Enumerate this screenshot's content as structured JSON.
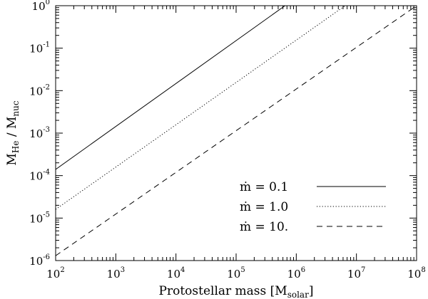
{
  "chart_data": {
    "type": "line",
    "x_scale": "log",
    "y_scale": "log",
    "xlim": [
      100,
      100000000
    ],
    "ylim": [
      1e-06,
      1
    ],
    "x_ticks": [
      {
        "base": "10",
        "exp": "2",
        "value": 100
      },
      {
        "base": "10",
        "exp": "3",
        "value": 1000
      },
      {
        "base": "10",
        "exp": "4",
        "value": 10000
      },
      {
        "base": "10",
        "exp": "5",
        "value": 100000
      },
      {
        "base": "10",
        "exp": "6",
        "value": 1000000
      },
      {
        "base": "10",
        "exp": "7",
        "value": 10000000
      },
      {
        "base": "10",
        "exp": "8",
        "value": 100000000
      }
    ],
    "y_ticks": [
      {
        "base": "10",
        "exp": "-6",
        "value": 1e-06
      },
      {
        "base": "10",
        "exp": "-5",
        "value": 1e-05
      },
      {
        "base": "10",
        "exp": "-4",
        "value": 0.0001
      },
      {
        "base": "10",
        "exp": "-3",
        "value": 0.001
      },
      {
        "base": "10",
        "exp": "-2",
        "value": 0.01
      },
      {
        "base": "10",
        "exp": "-1",
        "value": 0.1
      },
      {
        "base": "10",
        "exp": "0",
        "value": 1
      }
    ],
    "xlabel": {
      "main": "Protostellar mass [M",
      "sub": "solar",
      "close": "]"
    },
    "ylabel": {
      "m1": "M",
      "s1": "He",
      "mid": " / M",
      "s2": "nuc"
    },
    "series": [
      {
        "name": "ṁ =  0.1",
        "style": "solid",
        "x": [
          100,
          650000
        ],
        "y": [
          0.00014,
          1
        ]
      },
      {
        "name": "ṁ =  1.0",
        "style": "dotted",
        "x": [
          100,
          6500000
        ],
        "y": [
          1.6e-05,
          1
        ]
      },
      {
        "name": "ṁ =  10.",
        "style": "dashed",
        "x": [
          100,
          100000000
        ],
        "y": [
          1.3e-06,
          1
        ]
      }
    ],
    "legend_position": "lower-right",
    "grid": false,
    "colors": {
      "line": "#000000",
      "background": "#ffffff"
    }
  }
}
